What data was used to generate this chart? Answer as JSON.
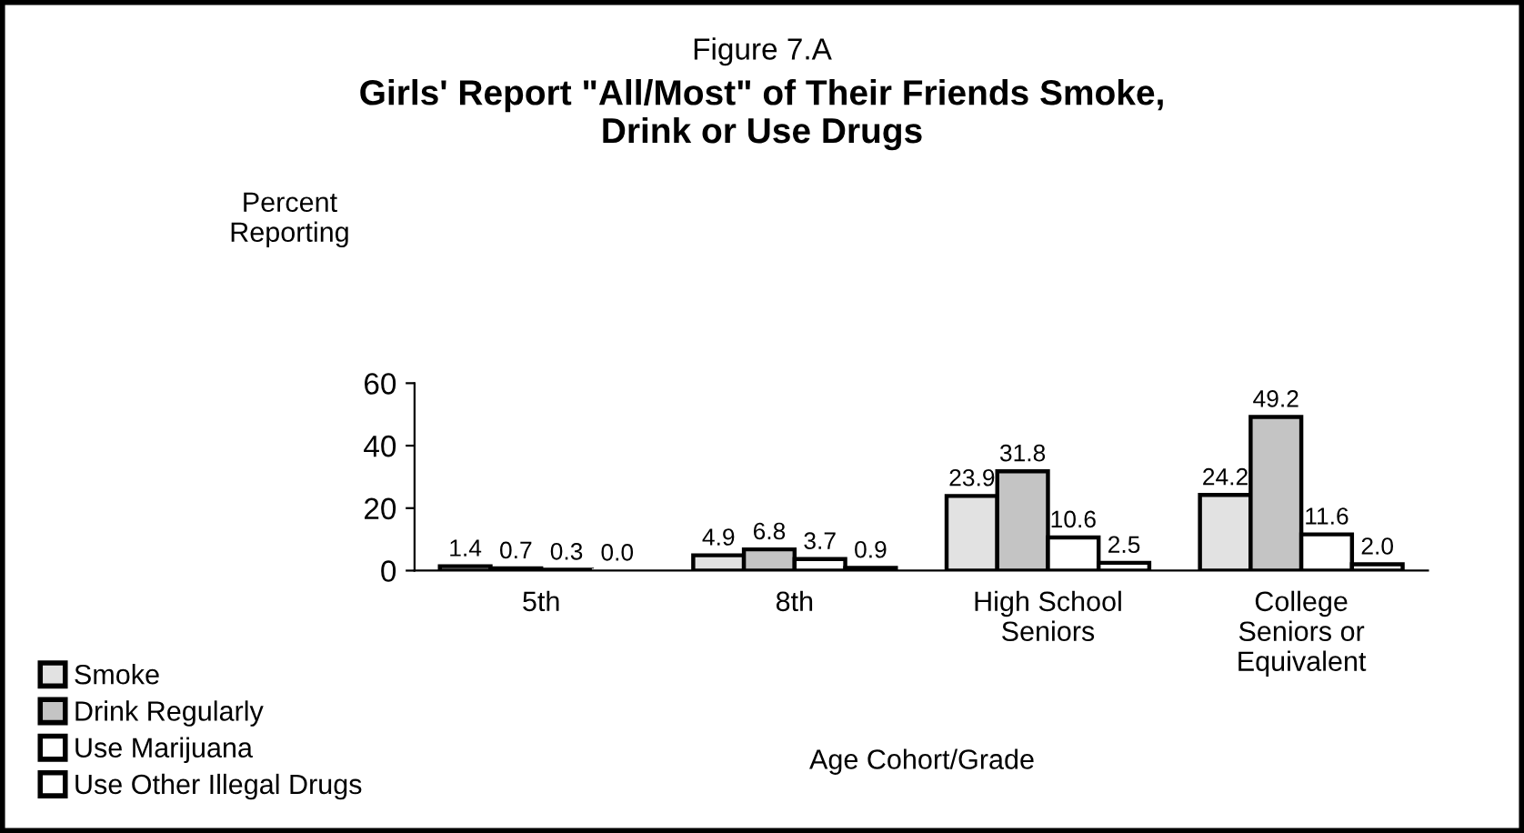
{
  "chart_data": {
    "type": "bar",
    "subtitle": "Figure 7.A",
    "title": "Girls' Report \"All/Most\" of Their Friends Smoke,\nDrink or Use Drugs",
    "xlabel": "Age Cohort/Grade",
    "ylabel": "Percent\nReporting",
    "categories": [
      "5th",
      "8th",
      "High School\nSeniors",
      "College\nSeniors or\nEquivalent"
    ],
    "series": [
      {
        "name": "Smoke",
        "color": "#e2e2e2",
        "values": [
          1.4,
          4.9,
          23.9,
          24.2
        ]
      },
      {
        "name": "Drink Regularly",
        "color": "#c4c4c4",
        "values": [
          0.7,
          6.8,
          31.8,
          49.2
        ]
      },
      {
        "name": "Use Marijuana",
        "color": "#ffffff",
        "values": [
          0.3,
          3.7,
          10.6,
          11.6
        ]
      },
      {
        "name": "Use Other Illegal Drugs",
        "color": "#ffffff",
        "values": [
          0,
          0.9,
          2.5,
          2
        ],
        "value_labels": [
          "0.0",
          "0.9",
          "2.5",
          "2.0"
        ]
      }
    ],
    "ylim": [
      0,
      60
    ],
    "yticks": [
      0,
      20,
      40,
      60
    ],
    "data_labels": true,
    "grid": false,
    "legend": "bottom left"
  }
}
